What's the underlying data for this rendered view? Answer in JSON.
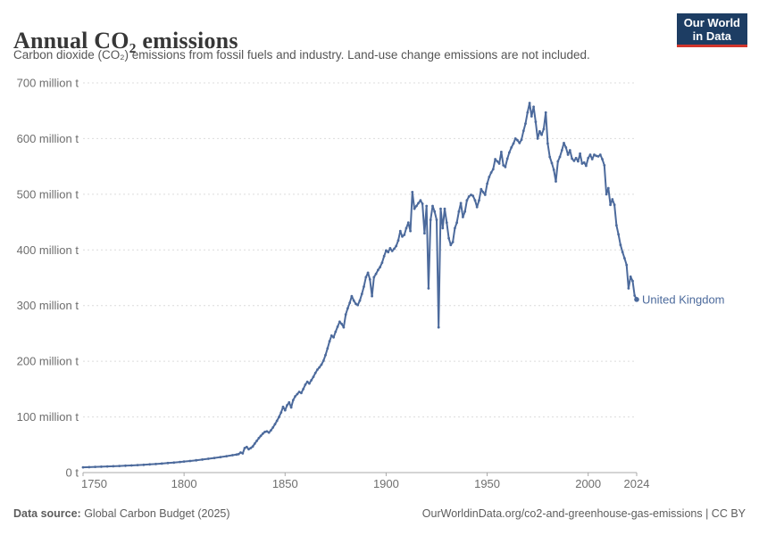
{
  "header": {
    "title": "Annual CO₂ emissions",
    "subtitle": "Carbon dioxide (CO₂) emissions from fossil fuels and industry. Land-use change emissions are not included.",
    "logo": {
      "line1": "Our World",
      "line2": "in Data"
    }
  },
  "footer": {
    "source_label": "Data source:",
    "source_value": " Global Carbon Budget (2025)",
    "credit": "OurWorldinData.org/co2-and-greenhouse-gas-emissions | CC BY"
  },
  "colors": {
    "series": "#4c6a9c",
    "grid": "#dcdcdc",
    "axis": "#a8a8a8",
    "tick_text": "#6e6e6e",
    "title_text": "#373737",
    "subtitle_text": "#555555",
    "footer_text": "#5d5d5d",
    "logo_bg": "#1d3d63",
    "logo_underline": "#d1352c"
  },
  "chart_data": {
    "type": "line",
    "title": "Annual CO₂ emissions",
    "entity": "United Kingdom",
    "unit": "million t",
    "xlabel": "",
    "ylabel": "",
    "xlim": [
      1750,
      2024
    ],
    "ylim": [
      0,
      700
    ],
    "grid": "dashed-horizontal",
    "legend_position": "end-of-line-label",
    "x_ticks": [
      1750,
      1800,
      1850,
      1900,
      1950,
      2000,
      2024
    ],
    "y_ticks": [
      {
        "value": 700,
        "label": "700 million t"
      },
      {
        "value": 600,
        "label": "600 million t"
      },
      {
        "value": 500,
        "label": "500 million t"
      },
      {
        "value": 400,
        "label": "400 million t"
      },
      {
        "value": 300,
        "label": "300 million t"
      },
      {
        "value": 200,
        "label": "200 million t"
      },
      {
        "value": 100,
        "label": "100 million t"
      },
      {
        "value": 0,
        "label": "0 t"
      }
    ],
    "series": [
      {
        "name": "United Kingdom",
        "color": "#4c6a9c",
        "points": [
          [
            1750,
            9.4
          ],
          [
            1753,
            9.8
          ],
          [
            1756,
            10.2
          ],
          [
            1759,
            10.6
          ],
          [
            1762,
            11
          ],
          [
            1765,
            11.4
          ],
          [
            1768,
            11.8
          ],
          [
            1771,
            12.3
          ],
          [
            1774,
            12.8
          ],
          [
            1777,
            13.4
          ],
          [
            1780,
            14
          ],
          [
            1783,
            14.7
          ],
          [
            1786,
            15.4
          ],
          [
            1789,
            16.2
          ],
          [
            1792,
            17.1
          ],
          [
            1795,
            18
          ],
          [
            1798,
            19
          ],
          [
            1800,
            19.8
          ],
          [
            1803,
            20.9
          ],
          [
            1806,
            22.1
          ],
          [
            1809,
            23.4
          ],
          [
            1812,
            24.8
          ],
          [
            1815,
            26.2
          ],
          [
            1818,
            27.8
          ],
          [
            1821,
            29.4
          ],
          [
            1824,
            31.2
          ],
          [
            1826,
            32.4
          ],
          [
            1827,
            33.2
          ],
          [
            1828,
            36
          ],
          [
            1829,
            34.5
          ],
          [
            1830,
            44
          ],
          [
            1831,
            46
          ],
          [
            1832,
            42
          ],
          [
            1833,
            44
          ],
          [
            1834,
            47
          ],
          [
            1835,
            52
          ],
          [
            1836,
            57
          ],
          [
            1837,
            62
          ],
          [
            1838,
            66
          ],
          [
            1839,
            70
          ],
          [
            1840,
            73
          ],
          [
            1841,
            74
          ],
          [
            1842,
            72
          ],
          [
            1843,
            76
          ],
          [
            1844,
            81
          ],
          [
            1845,
            87
          ],
          [
            1846,
            93
          ],
          [
            1847,
            100
          ],
          [
            1848,
            108
          ],
          [
            1849,
            118
          ],
          [
            1850,
            112
          ],
          [
            1851,
            121
          ],
          [
            1852,
            126
          ],
          [
            1853,
            117
          ],
          [
            1854,
            130
          ],
          [
            1855,
            137
          ],
          [
            1856,
            141
          ],
          [
            1857,
            145
          ],
          [
            1858,
            143
          ],
          [
            1859,
            150
          ],
          [
            1860,
            158
          ],
          [
            1861,
            163
          ],
          [
            1862,
            160
          ],
          [
            1863,
            166
          ],
          [
            1864,
            172
          ],
          [
            1865,
            179
          ],
          [
            1866,
            185
          ],
          [
            1867,
            189
          ],
          [
            1868,
            194
          ],
          [
            1869,
            201
          ],
          [
            1870,
            211
          ],
          [
            1871,
            223
          ],
          [
            1872,
            236
          ],
          [
            1873,
            246
          ],
          [
            1874,
            243
          ],
          [
            1875,
            253
          ],
          [
            1876,
            262
          ],
          [
            1877,
            271
          ],
          [
            1878,
            267
          ],
          [
            1879,
            261
          ],
          [
            1880,
            284
          ],
          [
            1881,
            295
          ],
          [
            1882,
            305
          ],
          [
            1883,
            317
          ],
          [
            1884,
            309
          ],
          [
            1885,
            303
          ],
          [
            1886,
            301
          ],
          [
            1887,
            309
          ],
          [
            1888,
            321
          ],
          [
            1889,
            334
          ],
          [
            1890,
            351
          ],
          [
            1891,
            359
          ],
          [
            1892,
            347
          ],
          [
            1893,
            317
          ],
          [
            1894,
            351
          ],
          [
            1895,
            357
          ],
          [
            1896,
            364
          ],
          [
            1897,
            369
          ],
          [
            1898,
            377
          ],
          [
            1899,
            389
          ],
          [
            1900,
            399
          ],
          [
            1901,
            396
          ],
          [
            1902,
            403
          ],
          [
            1903,
            398
          ],
          [
            1904,
            402
          ],
          [
            1905,
            407
          ],
          [
            1906,
            417
          ],
          [
            1907,
            434
          ],
          [
            1908,
            424
          ],
          [
            1909,
            427
          ],
          [
            1910,
            439
          ],
          [
            1911,
            449
          ],
          [
            1912,
            434
          ],
          [
            1913,
            504
          ],
          [
            1914,
            474
          ],
          [
            1915,
            479
          ],
          [
            1916,
            484
          ],
          [
            1917,
            489
          ],
          [
            1918,
            483
          ],
          [
            1919,
            430
          ],
          [
            1920,
            479
          ],
          [
            1921,
            331
          ],
          [
            1922,
            454
          ],
          [
            1923,
            479
          ],
          [
            1924,
            469
          ],
          [
            1925,
            454
          ],
          [
            1926,
            261
          ],
          [
            1927,
            474
          ],
          [
            1928,
            439
          ],
          [
            1929,
            474
          ],
          [
            1930,
            449
          ],
          [
            1931,
            421
          ],
          [
            1932,
            409
          ],
          [
            1933,
            414
          ],
          [
            1934,
            439
          ],
          [
            1935,
            449
          ],
          [
            1936,
            469
          ],
          [
            1937,
            484
          ],
          [
            1938,
            459
          ],
          [
            1939,
            469
          ],
          [
            1940,
            489
          ],
          [
            1941,
            496
          ],
          [
            1942,
            499
          ],
          [
            1943,
            497
          ],
          [
            1944,
            489
          ],
          [
            1945,
            477
          ],
          [
            1946,
            489
          ],
          [
            1947,
            509
          ],
          [
            1948,
            504
          ],
          [
            1949,
            499
          ],
          [
            1950,
            519
          ],
          [
            1951,
            531
          ],
          [
            1952,
            539
          ],
          [
            1953,
            545
          ],
          [
            1954,
            563
          ],
          [
            1955,
            559
          ],
          [
            1956,
            555
          ],
          [
            1957,
            576
          ],
          [
            1958,
            552
          ],
          [
            1959,
            549
          ],
          [
            1960,
            564
          ],
          [
            1961,
            575
          ],
          [
            1962,
            584
          ],
          [
            1963,
            591
          ],
          [
            1964,
            600
          ],
          [
            1965,
            597
          ],
          [
            1966,
            592
          ],
          [
            1967,
            598
          ],
          [
            1968,
            614
          ],
          [
            1969,
            627
          ],
          [
            1970,
            647
          ],
          [
            1971,
            664
          ],
          [
            1972,
            640
          ],
          [
            1973,
            657
          ],
          [
            1974,
            630
          ],
          [
            1975,
            600
          ],
          [
            1976,
            613
          ],
          [
            1977,
            607
          ],
          [
            1978,
            617
          ],
          [
            1979,
            647
          ],
          [
            1980,
            591
          ],
          [
            1981,
            567
          ],
          [
            1982,
            556
          ],
          [
            1983,
            544
          ],
          [
            1984,
            523
          ],
          [
            1985,
            559
          ],
          [
            1986,
            567
          ],
          [
            1987,
            579
          ],
          [
            1988,
            592
          ],
          [
            1989,
            584
          ],
          [
            1990,
            571
          ],
          [
            1991,
            579
          ],
          [
            1992,
            564
          ],
          [
            1993,
            560
          ],
          [
            1994,
            565
          ],
          [
            1995,
            559
          ],
          [
            1996,
            573
          ],
          [
            1997,
            555
          ],
          [
            1998,
            557
          ],
          [
            1999,
            551
          ],
          [
            2000,
            565
          ],
          [
            2001,
            571
          ],
          [
            2002,
            563
          ],
          [
            2003,
            571
          ],
          [
            2004,
            569
          ],
          [
            2005,
            568
          ],
          [
            2006,
            571
          ],
          [
            2007,
            563
          ],
          [
            2008,
            552
          ],
          [
            2009,
            500
          ],
          [
            2010,
            511
          ],
          [
            2011,
            481
          ],
          [
            2012,
            491
          ],
          [
            2013,
            481
          ],
          [
            2014,
            444
          ],
          [
            2015,
            428
          ],
          [
            2016,
            409
          ],
          [
            2017,
            396
          ],
          [
            2018,
            385
          ],
          [
            2019,
            373
          ],
          [
            2020,
            331
          ],
          [
            2021,
            352
          ],
          [
            2022,
            344
          ],
          [
            2023,
            318
          ],
          [
            2024,
            311
          ]
        ]
      }
    ]
  }
}
